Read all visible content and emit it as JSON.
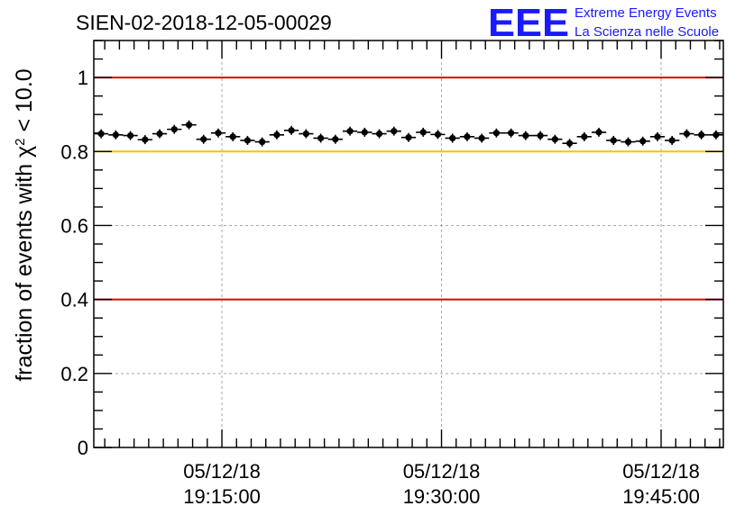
{
  "chart_data": {
    "type": "scatter",
    "title": "SIEN-02-2018-12-05-00029",
    "ylabel": {
      "prefix": "fraction of events with ",
      "symbol": "χ",
      "exponent": "2",
      "suffix": " < 10.0"
    },
    "xlabel": "",
    "x_range_minutes": [
      0,
      43
    ],
    "ylim": [
      0,
      1.1
    ],
    "y_ticks": [
      {
        "value": 0,
        "label": "0"
      },
      {
        "value": 0.2,
        "label": "0.2"
      },
      {
        "value": 0.4,
        "label": "0.4"
      },
      {
        "value": 0.6,
        "label": "0.6"
      },
      {
        "value": 0.8,
        "label": "0.8"
      },
      {
        "value": 1,
        "label": "1"
      }
    ],
    "x_ticks": [
      {
        "minute": 8.75,
        "date": "05/12/18",
        "time": "19:15:00"
      },
      {
        "minute": 23.75,
        "date": "05/12/18",
        "time": "19:30:00"
      },
      {
        "minute": 38.75,
        "date": "05/12/18",
        "time": "19:45:00"
      }
    ],
    "grid": true,
    "reference_lines": [
      {
        "y": 1.0,
        "color": "#e00000"
      },
      {
        "y": 0.8,
        "color": "#ffc000"
      },
      {
        "y": 0.4,
        "color": "#e00000"
      }
    ],
    "marker_color": "#000000",
    "series": [
      {
        "values": [
          0.848,
          0.845,
          0.843,
          0.832,
          0.848,
          0.86,
          0.872,
          0.833,
          0.85,
          0.84,
          0.83,
          0.826,
          0.845,
          0.857,
          0.848,
          0.836,
          0.833,
          0.855,
          0.852,
          0.848,
          0.855,
          0.838,
          0.852,
          0.846,
          0.836,
          0.84,
          0.836,
          0.85,
          0.85,
          0.843,
          0.843,
          0.833,
          0.822,
          0.84,
          0.852,
          0.83,
          0.826,
          0.828,
          0.84,
          0.83,
          0.848,
          0.845,
          0.845
        ]
      }
    ]
  },
  "logo": {
    "letters": "EEE",
    "line1": "Extreme Energy Events",
    "line2": "La Scienza nelle Scuole"
  }
}
